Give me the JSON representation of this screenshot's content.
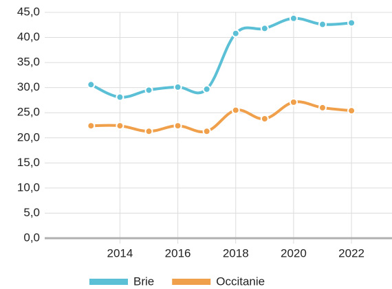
{
  "chart_data": {
    "type": "line",
    "x": [
      2013,
      2014,
      2015,
      2016,
      2017,
      2018,
      2019,
      2020,
      2021,
      2022
    ],
    "series": [
      {
        "name": "Brie",
        "color": "#5bc0d6",
        "values": [
          30.6,
          28.1,
          29.5,
          30.1,
          29.7,
          40.8,
          41.8,
          43.8,
          42.6,
          42.9
        ]
      },
      {
        "name": "Occitanie",
        "color": "#f0a04b",
        "values": [
          22.4,
          22.4,
          21.3,
          22.4,
          21.3,
          25.5,
          23.8,
          27.1,
          26.0,
          25.4
        ]
      }
    ],
    "xlim": [
      2011.4,
      2023.4
    ],
    "xticks": [
      2014,
      2016,
      2018,
      2020,
      2022
    ],
    "ylim": [
      0,
      45
    ],
    "yticks": [
      {
        "value": 0,
        "label": "0,0"
      },
      {
        "value": 5,
        "label": "5,0"
      },
      {
        "value": 10,
        "label": "10,0"
      },
      {
        "value": 15,
        "label": "15,0"
      },
      {
        "value": 20,
        "label": "20,0"
      },
      {
        "value": 25,
        "label": "25,0"
      },
      {
        "value": 30,
        "label": "30,0"
      },
      {
        "value": 35,
        "label": "35,0"
      },
      {
        "value": 40,
        "label": "40,0"
      },
      {
        "value": 45,
        "label": "45,0"
      }
    ],
    "grid": true,
    "legend": "bottom"
  }
}
